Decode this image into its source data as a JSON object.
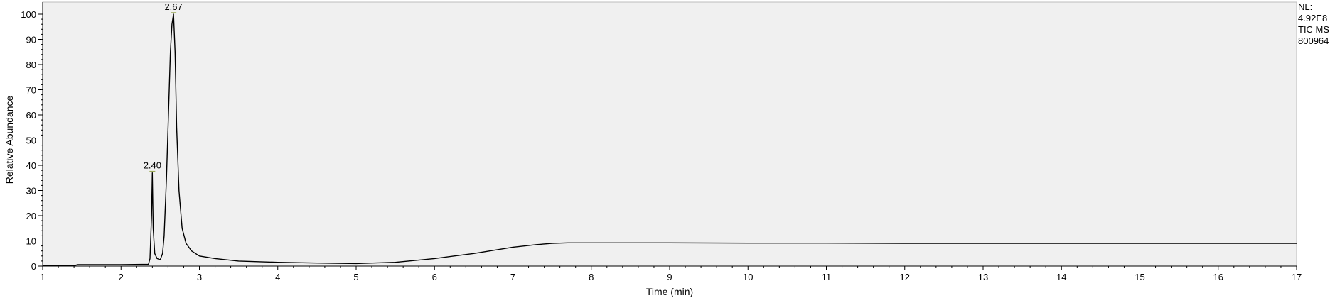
{
  "chart_data": {
    "type": "line",
    "xlabel": "Time (min)",
    "ylabel": "Relative Abundance",
    "xlim": [
      1,
      17
    ],
    "ylim": [
      0,
      100
    ],
    "xticks": [
      1,
      2,
      3,
      4,
      5,
      6,
      7,
      8,
      9,
      10,
      11,
      12,
      13,
      14,
      15,
      16,
      17
    ],
    "yticks": [
      0,
      10,
      20,
      30,
      40,
      50,
      60,
      70,
      80,
      90,
      100
    ],
    "grid": false,
    "colors": {
      "background": "#f0f0f0",
      "line": "#000000",
      "peak_marker": "#9aaa55"
    },
    "info": [
      "NL:",
      "4.92E8",
      "TIC  MS",
      "800964"
    ],
    "peaks": [
      {
        "label": "2.40",
        "x": 2.4,
        "y": 37
      },
      {
        "label": "2.67",
        "x": 2.67,
        "y": 100
      }
    ],
    "series": [
      {
        "x": [
          1.0,
          1.4,
          1.45,
          2.0,
          2.35,
          2.37,
          2.39,
          2.4,
          2.41,
          2.43,
          2.46,
          2.5,
          2.53,
          2.55,
          2.58,
          2.61,
          2.63,
          2.65,
          2.67,
          2.69,
          2.71,
          2.74,
          2.78,
          2.83,
          2.9,
          3.0,
          3.2,
          3.5,
          4.0,
          4.5,
          5.0,
          5.5,
          6.0,
          6.5,
          7.0,
          7.3,
          7.5,
          7.7,
          8.0,
          9.0,
          10.0,
          11.0,
          12.0,
          13.0,
          14.0,
          15.0,
          16.0,
          17.0
        ],
        "y": [
          0.2,
          0.2,
          0.6,
          0.6,
          0.7,
          3,
          20,
          37,
          15,
          5,
          3,
          2.5,
          5,
          12,
          35,
          65,
          85,
          96,
          100,
          85,
          55,
          30,
          15,
          9,
          6,
          4,
          3,
          2,
          1.5,
          1.2,
          1.0,
          1.5,
          3,
          5,
          7.5,
          8.5,
          9.0,
          9.2,
          9.2,
          9.2,
          9.1,
          9.1,
          9.0,
          9.0,
          9.0,
          9.0,
          9.0,
          9.0
        ]
      }
    ]
  }
}
